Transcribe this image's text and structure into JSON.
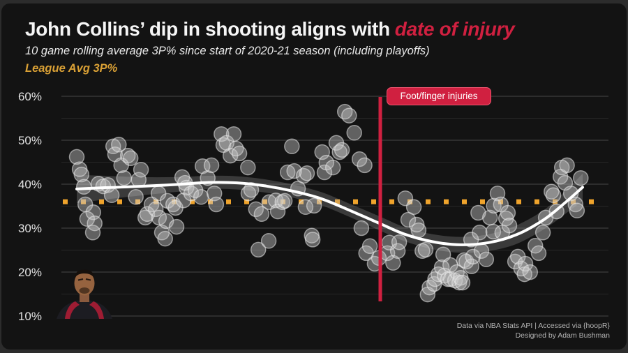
{
  "header": {
    "title_main": "John Collins’ dip in shooting aligns with",
    "title_accent": "date of injury",
    "subtitle": "10 game rolling average 3P% since start of 2020-21 season (including playoffs)",
    "legend_note": "League Avg 3P%"
  },
  "footer": {
    "credit_line1": "Data via NBA Stats API | Accessed via {hoopR}",
    "credit_line2": "Designed by Adam Bushman"
  },
  "colors": {
    "accent_red": "#d02040",
    "accent_red_border": "#ef5570",
    "gold": "#f0a42c",
    "gold_text": "#d9a035",
    "trend": "#ffffff",
    "band": "rgba(160,160,160,0.28)",
    "dot_fill": "rgba(205,205,205,0.42)",
    "dot_stroke": "rgba(235,235,235,0.55)",
    "grid_major": "#3d3d3d",
    "grid_minor": "#272727",
    "tick_text": "#e2e2e2"
  },
  "chart_data": {
    "type": "scatter",
    "title": "John Collins’ dip in shooting aligns with date of injury",
    "xlabel": "games since start of 2020-21 season (axis unlabeled)",
    "ylabel": "10 game rolling average 3P%",
    "x_range_games": [
      1,
      108
    ],
    "y_axis": {
      "ticks": [
        10,
        20,
        30,
        40,
        50,
        60
      ],
      "minor_ticks": [
        15,
        25,
        35,
        45,
        55
      ],
      "unit": "%",
      "range": [
        10,
        62
      ]
    },
    "grid": true,
    "league_avg": 36,
    "injury_line": {
      "x_game": 65.2,
      "label": "Foot/finger injuries"
    },
    "points": [
      [
        1.0,
        46.2
      ],
      [
        1.6,
        43.4
      ],
      [
        2.0,
        42.2
      ],
      [
        2.5,
        39.4
      ],
      [
        2.8,
        35.4
      ],
      [
        3.2,
        32.1
      ],
      [
        4.4,
        29.0
      ],
      [
        4.5,
        33.6
      ],
      [
        4.8,
        31.1
      ],
      [
        5.6,
        40.1
      ],
      [
        6.6,
        39.5
      ],
      [
        7.6,
        39.8
      ],
      [
        8.4,
        37.5
      ],
      [
        8.7,
        48.6
      ],
      [
        9.1,
        46.8
      ],
      [
        9.9,
        49.0
      ],
      [
        10.4,
        44.3
      ],
      [
        11.0,
        41.4
      ],
      [
        11.8,
        46.5
      ],
      [
        12.4,
        45.9
      ],
      [
        13.5,
        37.1
      ],
      [
        14.1,
        41.0
      ],
      [
        14.6,
        43.3
      ],
      [
        15.5,
        32.4
      ],
      [
        15.9,
        33.2
      ],
      [
        16.8,
        35.4
      ],
      [
        17.7,
        34.3
      ],
      [
        18.3,
        37.9
      ],
      [
        18.4,
        32.4
      ],
      [
        19.0,
        29.0
      ],
      [
        19.7,
        27.6
      ],
      [
        19.9,
        31.6
      ],
      [
        20.2,
        36.2
      ],
      [
        21.4,
        35.4
      ],
      [
        21.9,
        34.6
      ],
      [
        22.1,
        30.3
      ],
      [
        23.3,
        41.6
      ],
      [
        23.6,
        36.3
      ],
      [
        23.9,
        40.3
      ],
      [
        24.2,
        39.2
      ],
      [
        25.2,
        37.9
      ],
      [
        26.1,
        38.6
      ],
      [
        27.3,
        37.1
      ],
      [
        27.6,
        44.1
      ],
      [
        28.7,
        41.4
      ],
      [
        29.5,
        44.3
      ],
      [
        30.1,
        37.9
      ],
      [
        30.5,
        35.4
      ],
      [
        31.6,
        51.4
      ],
      [
        32.0,
        48.9
      ],
      [
        32.7,
        49.4
      ],
      [
        33.5,
        46.5
      ],
      [
        34.2,
        51.4
      ],
      [
        34.7,
        48.1
      ],
      [
        35.4,
        47.0
      ],
      [
        37.2,
        43.8
      ],
      [
        37.3,
        37.9
      ],
      [
        37.9,
        38.7
      ],
      [
        38.9,
        34.3
      ],
      [
        39.4,
        25.1
      ],
      [
        40.1,
        33.2
      ],
      [
        41.6,
        27.1
      ],
      [
        41.7,
        35.9
      ],
      [
        43.1,
        36.3
      ],
      [
        43.5,
        33.8
      ],
      [
        44.5,
        35.9
      ],
      [
        45.0,
        36.2
      ],
      [
        45.6,
        42.7
      ],
      [
        46.5,
        48.6
      ],
      [
        47.0,
        43.0
      ],
      [
        47.8,
        39.0
      ],
      [
        49.0,
        41.9
      ],
      [
        49.4,
        34.8
      ],
      [
        49.7,
        42.5
      ],
      [
        50.7,
        28.3
      ],
      [
        50.9,
        27.4
      ],
      [
        51.2,
        35.1
      ],
      [
        52.9,
        47.3
      ],
      [
        53.4,
        42.7
      ],
      [
        53.8,
        44.9
      ],
      [
        55.2,
        43.8
      ],
      [
        55.9,
        49.4
      ],
      [
        56.6,
        47.3
      ],
      [
        57.1,
        47.8
      ],
      [
        57.7,
        56.5
      ],
      [
        58.6,
        55.6
      ],
      [
        59.7,
        51.7
      ],
      [
        60.8,
        45.7
      ],
      [
        61.2,
        30.0
      ],
      [
        61.9,
        44.3
      ],
      [
        62.2,
        24.3
      ],
      [
        63.0,
        25.9
      ],
      [
        64.0,
        21.9
      ],
      [
        64.9,
        23.2
      ],
      [
        66.7,
        24.3
      ],
      [
        67.1,
        26.7
      ],
      [
        67.9,
        22.1
      ],
      [
        68.9,
        24.8
      ],
      [
        69.2,
        26.8
      ],
      [
        70.5,
        36.8
      ],
      [
        71.1,
        31.9
      ],
      [
        72.3,
        34.8
      ],
      [
        72.9,
        30.8
      ],
      [
        73.3,
        29.5
      ],
      [
        74.1,
        24.8
      ],
      [
        74.8,
        25.1
      ],
      [
        75.2,
        14.9
      ],
      [
        75.6,
        16.5
      ],
      [
        76.6,
        17.3
      ],
      [
        76.8,
        18.4
      ],
      [
        77.5,
        19.5
      ],
      [
        78.2,
        21.1
      ],
      [
        78.5,
        24.0
      ],
      [
        78.8,
        19.2
      ],
      [
        79.5,
        18.4
      ],
      [
        80.0,
        21.6
      ],
      [
        80.1,
        18.4
      ],
      [
        81.0,
        18.1
      ],
      [
        81.4,
        20.0
      ],
      [
        81.9,
        17.6
      ],
      [
        82.2,
        18.7
      ],
      [
        82.6,
        17.6
      ],
      [
        82.9,
        22.7
      ],
      [
        83.4,
        22.4
      ],
      [
        84.4,
        27.4
      ],
      [
        84.5,
        21.3
      ],
      [
        84.8,
        23.5
      ],
      [
        85.9,
        33.5
      ],
      [
        86.2,
        29.0
      ],
      [
        86.6,
        24.8
      ],
      [
        87.6,
        22.9
      ],
      [
        88.4,
        32.4
      ],
      [
        89.1,
        29.2
      ],
      [
        89.2,
        35.1
      ],
      [
        90.0,
        37.9
      ],
      [
        90.7,
        35.4
      ],
      [
        91.0,
        29.0
      ],
      [
        91.8,
        32.2
      ],
      [
        92.2,
        33.5
      ],
      [
        92.5,
        30.6
      ],
      [
        93.7,
        22.4
      ],
      [
        94.3,
        23.5
      ],
      [
        95.0,
        20.8
      ],
      [
        95.7,
        19.5
      ],
      [
        95.9,
        21.9
      ],
      [
        96.9,
        20.0
      ],
      [
        98.0,
        26.0
      ],
      [
        98.7,
        24.3
      ],
      [
        99.6,
        29.0
      ],
      [
        100.2,
        32.4
      ],
      [
        101.4,
        38.3
      ],
      [
        101.8,
        37.5
      ],
      [
        102.5,
        33.8
      ],
      [
        103.3,
        41.7
      ],
      [
        103.6,
        43.8
      ],
      [
        104.3,
        40.3
      ],
      [
        104.7,
        44.3
      ],
      [
        105.5,
        37.9
      ],
      [
        106.5,
        35.4
      ],
      [
        106.8,
        34.0
      ],
      [
        107.6,
        41.4
      ]
    ],
    "trend": [
      [
        1,
        38.9
      ],
      [
        6.9,
        39.2
      ],
      [
        14.3,
        39.5
      ],
      [
        21.7,
        39.9
      ],
      [
        29,
        40.4
      ],
      [
        34.9,
        40.3
      ],
      [
        40.9,
        39.6
      ],
      [
        46.8,
        38.4
      ],
      [
        52.7,
        36.7
      ],
      [
        58.6,
        34.1
      ],
      [
        65.2,
        31.0
      ],
      [
        70.4,
        28.6
      ],
      [
        76.3,
        26.9
      ],
      [
        82.2,
        26.2
      ],
      [
        88.1,
        26.7
      ],
      [
        94,
        28.5
      ],
      [
        99.9,
        32.0
      ],
      [
        104.3,
        35.8
      ],
      [
        108,
        39.3
      ]
    ],
    "band": [
      [
        1,
        35.7,
        42.1
      ],
      [
        6.9,
        36.5,
        41.9
      ],
      [
        14.3,
        37.4,
        41.6
      ],
      [
        21.7,
        38.2,
        41.6
      ],
      [
        29,
        38.9,
        41.9
      ],
      [
        34.9,
        38.8,
        41.8
      ],
      [
        40.9,
        38.1,
        41.1
      ],
      [
        46.8,
        36.9,
        39.9
      ],
      [
        52.7,
        35.2,
        38.2
      ],
      [
        58.6,
        32.6,
        35.6
      ],
      [
        65.2,
        29.4,
        32.6
      ],
      [
        70.4,
        27.0,
        30.2
      ],
      [
        76.3,
        25.2,
        28.6
      ],
      [
        82.2,
        24.4,
        28.0
      ],
      [
        88.1,
        24.8,
        28.6
      ],
      [
        94,
        26.4,
        30.6
      ],
      [
        99.9,
        29.8,
        34.2
      ],
      [
        104.3,
        33.2,
        38.4
      ],
      [
        108,
        36.2,
        42.4
      ]
    ],
    "legend_entries": [
      "League Avg 3P%"
    ],
    "legend_position": "top-left-as-subtitle"
  }
}
